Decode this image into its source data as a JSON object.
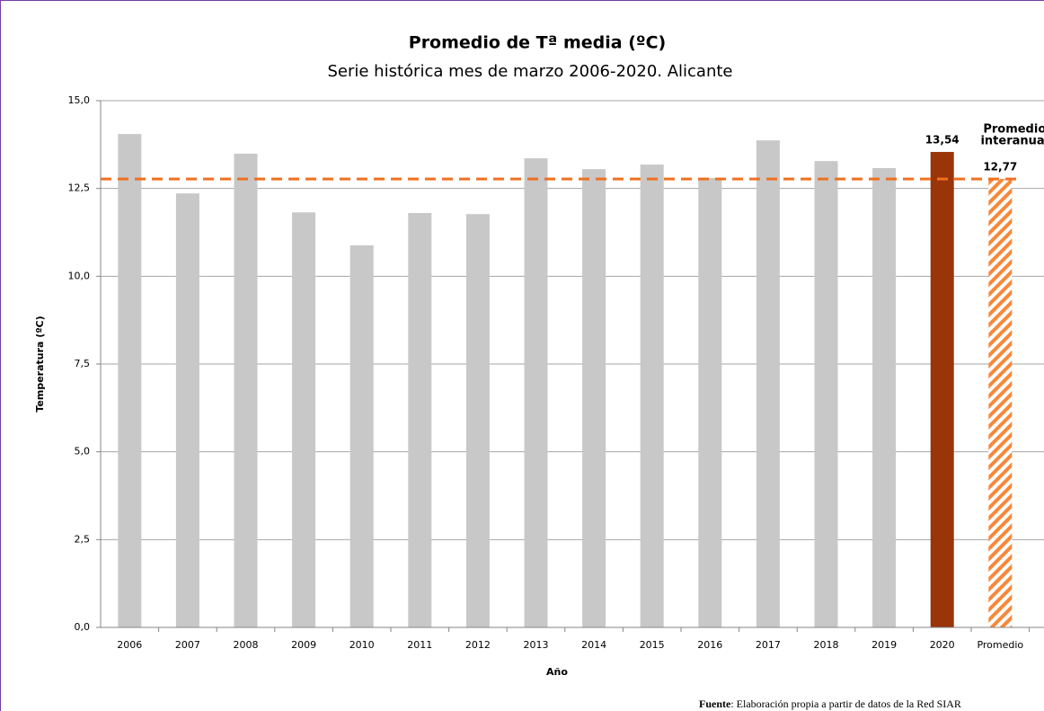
{
  "chart_data": {
    "type": "bar",
    "title": "Promedio de Tª media (ºC)",
    "subtitle": "Serie histórica mes de marzo 2006-2020.  Alicante",
    "y_label": "Temperatura (ºC)",
    "x_label": "Año",
    "categories": [
      "2006",
      "2007",
      "2008",
      "2009",
      "2010",
      "2011",
      "2012",
      "2013",
      "2014",
      "2015",
      "2016",
      "2017",
      "2018",
      "2019",
      "2020",
      "Promedio"
    ],
    "values": [
      14.05,
      12.36,
      13.49,
      11.82,
      10.88,
      11.8,
      11.77,
      13.36,
      13.05,
      13.18,
      12.8,
      13.87,
      13.28,
      13.08,
      13.54,
      12.77
    ],
    "value_labels": [
      null,
      null,
      null,
      null,
      null,
      null,
      null,
      null,
      null,
      null,
      null,
      null,
      null,
      null,
      "13,54",
      "12,77"
    ],
    "colors": [
      "#c8c8c8",
      "#c8c8c8",
      "#c8c8c8",
      "#c8c8c8",
      "#c8c8c8",
      "#c8c8c8",
      "#c8c8c8",
      "#c8c8c8",
      "#c8c8c8",
      "#c8c8c8",
      "#c8c8c8",
      "#c8c8c8",
      "#c8c8c8",
      "#c8c8c8",
      "#9a3409",
      "#f7883a"
    ],
    "hatch": [
      false,
      false,
      false,
      false,
      false,
      false,
      false,
      false,
      false,
      false,
      false,
      false,
      false,
      false,
      false,
      true
    ],
    "label_colors": [
      "#9a3409",
      "#f7883a"
    ],
    "average_line_color": "#f07020",
    "annotation": [
      "Promedio",
      "interanual"
    ],
    "ylim": [
      0,
      15
    ],
    "yticks": [
      {
        "value": 0,
        "label": "0,0"
      },
      {
        "value": 2.5,
        "label": "2,5"
      },
      {
        "value": 5,
        "label": "5,0"
      },
      {
        "value": 7.5,
        "label": "7,5"
      },
      {
        "value": 10,
        "label": "10,0"
      },
      {
        "value": 12.5,
        "label": "12,5"
      },
      {
        "value": 15,
        "label": "15,0"
      }
    ],
    "grid": true,
    "source_label": "Fuente",
    "source_text": ": Elaboración propia a partir de datos de la Red SIAR"
  }
}
